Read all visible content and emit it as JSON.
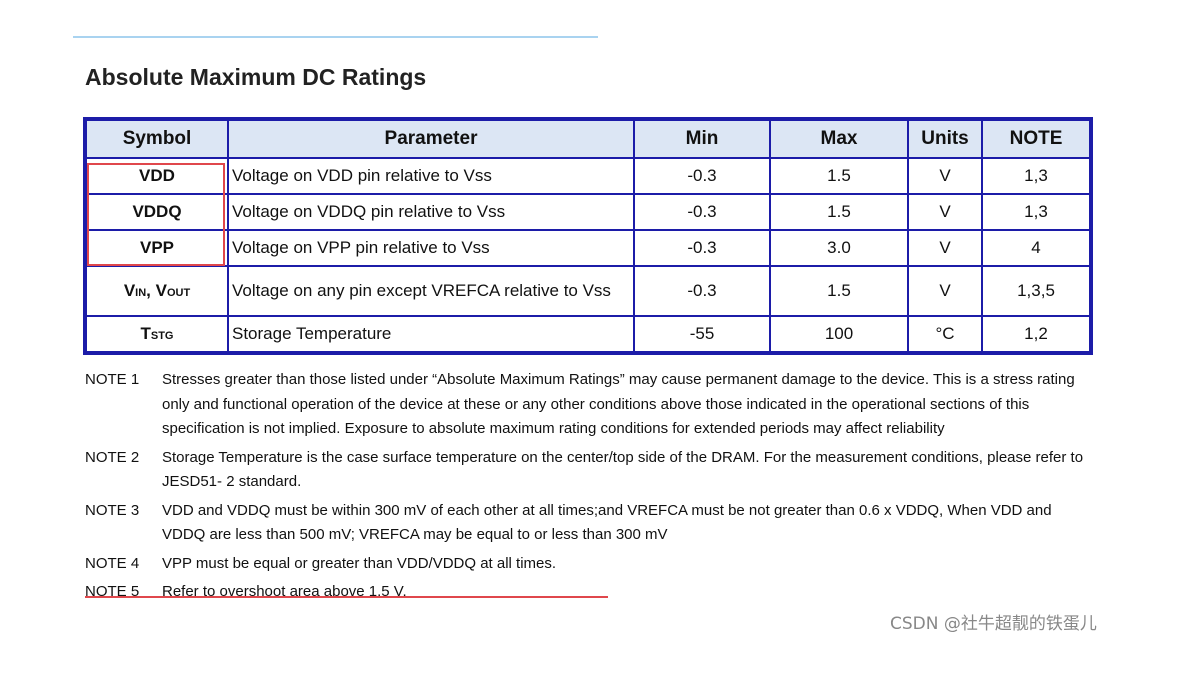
{
  "header": {
    "title": "Absolute Maximum DC Ratings"
  },
  "table": {
    "columns": [
      "Symbol",
      "Parameter",
      "Min",
      "Max",
      "Units",
      "NOTE"
    ],
    "rows": [
      {
        "symbol": [
          "VDD"
        ],
        "cells": [
          "Voltage on VDD pin relative to Vss",
          "-0.3",
          "1.5",
          "V",
          "1,3"
        ]
      },
      {
        "symbol": [
          "VDDQ"
        ],
        "cells": [
          "Voltage on VDDQ pin relative to Vss",
          "-0.3",
          "1.5",
          "V",
          "1,3"
        ]
      },
      {
        "symbol": [
          "VPP"
        ],
        "cells": [
          "Voltage on VPP pin relative to Vss",
          "-0.3",
          "3.0",
          "V",
          "4"
        ]
      },
      {
        "symbol": [
          "V",
          {
            "sub": "IN"
          },
          ", V",
          {
            "sub": "OUT"
          }
        ],
        "cells": [
          "Voltage on any pin except VREFCA relative to Vss",
          "-0.3",
          "1.5",
          "V",
          "1,3,5"
        ]
      },
      {
        "symbol": [
          "T",
          {
            "sub": "STG"
          }
        ],
        "cells": [
          "Storage Temperature",
          "-55",
          "100",
          "°C",
          "1,2"
        ]
      }
    ]
  },
  "notes": [
    {
      "label": "NOTE 1",
      "text": "Stresses greater than those listed under “Absolute Maximum Ratings” may cause permanent damage to the device. This is a stress rating only and functional operation of the device at these or any other conditions above those indicated in the operational sections of this specification is not implied. Exposure to absolute maximum rating conditions for extended periods may affect reliability"
    },
    {
      "label": "NOTE 2",
      "text": "Storage Temperature is the case surface temperature on the center/top side of the DRAM. For the measurement conditions, please refer to JESD51- 2 standard."
    },
    {
      "label": "NOTE 3",
      "text": "VDD and VDDQ must be within 300 mV of each other at all times;and VREFCA must be not greater than 0.6 x VDDQ, When VDD and VDDQ are less than 500 mV; VREFCA may be equal to or less than 300 mV"
    },
    {
      "label": "NOTE 4",
      "text": "VPP must be equal or greater than VDD/VDDQ at all times."
    },
    {
      "label": "NOTE 5",
      "text": "Refer to overshoot area above 1.5 V."
    }
  ],
  "watermark": "CSDN @社牛超靓的铁蛋儿"
}
